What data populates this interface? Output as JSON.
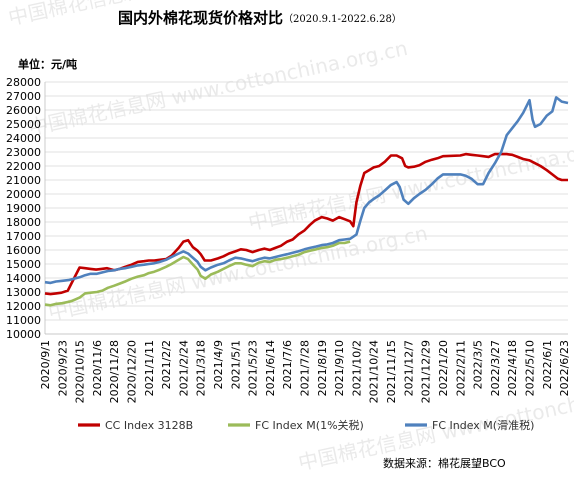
{
  "chart_data": {
    "type": "line",
    "title": "国内外棉花现货价格对比",
    "subtitle": "（2020.9.1-2022.6.28）",
    "ylabel": "单位：元/吨",
    "ylim": [
      10000,
      28000
    ],
    "yticks": [
      10000,
      11000,
      12000,
      13000,
      14000,
      15000,
      16000,
      17000,
      18000,
      19000,
      20000,
      21000,
      22000,
      23000,
      24000,
      25000,
      26000,
      27000,
      28000
    ],
    "xlim": [
      "2020-09-01",
      "2022-06-28"
    ],
    "xticks": [
      "2020/9/1",
      "2020/9/23",
      "2020/10/15",
      "2020/11/6",
      "2020/11/28",
      "2020/12/20",
      "2021/1/11",
      "2021/2/2",
      "2021/2/24",
      "2021/3/18",
      "2021/4/9",
      "2021/5/1",
      "2021/5/23",
      "2021/6/14",
      "2021/7/6",
      "2021/7/28",
      "2021/8/19",
      "2021/9/10",
      "2021/10/2",
      "2021/10/24",
      "2021/11/15",
      "2021/12/7",
      "2021/12/29",
      "2022/1/20",
      "2022/2/11",
      "2022/3/5",
      "2022/3/27",
      "2022/4/18",
      "2022/5/10",
      "2022/6/1",
      "2022/6/23"
    ],
    "grid": true,
    "legend_position": "bottom",
    "source": "数据来源：棉花展望BCO",
    "watermark": "中国棉花信息网 www.cottonchina.org.cn",
    "series": [
      {
        "name": "CC Index 3128B",
        "color": "#c00000",
        "points": [
          [
            "2020-09-01",
            12900
          ],
          [
            "2020-09-08",
            12850
          ],
          [
            "2020-09-15",
            12900
          ],
          [
            "2020-09-22",
            12950
          ],
          [
            "2020-09-30",
            13100
          ],
          [
            "2020-10-09",
            14100
          ],
          [
            "2020-10-15",
            14750
          ],
          [
            "2020-10-22",
            14700
          ],
          [
            "2020-10-29",
            14650
          ],
          [
            "2020-11-05",
            14600
          ],
          [
            "2020-11-12",
            14650
          ],
          [
            "2020-11-19",
            14700
          ],
          [
            "2020-11-28",
            14550
          ],
          [
            "2020-12-05",
            14650
          ],
          [
            "2020-12-12",
            14800
          ],
          [
            "2020-12-20",
            14950
          ],
          [
            "2020-12-28",
            15150
          ],
          [
            "2021-01-05",
            15200
          ],
          [
            "2021-01-11",
            15250
          ],
          [
            "2021-01-18",
            15250
          ],
          [
            "2021-01-25",
            15300
          ],
          [
            "2021-02-02",
            15350
          ],
          [
            "2021-02-09",
            15600
          ],
          [
            "2021-02-18",
            16150
          ],
          [
            "2021-02-24",
            16600
          ],
          [
            "2021-03-02",
            16700
          ],
          [
            "2021-03-08",
            16200
          ],
          [
            "2021-03-14",
            15950
          ],
          [
            "2021-03-18",
            15700
          ],
          [
            "2021-03-23",
            15250
          ],
          [
            "2021-03-31",
            15250
          ],
          [
            "2021-04-09",
            15400
          ],
          [
            "2021-04-16",
            15550
          ],
          [
            "2021-04-23",
            15750
          ],
          [
            "2021-05-01",
            15900
          ],
          [
            "2021-05-08",
            16050
          ],
          [
            "2021-05-15",
            16000
          ],
          [
            "2021-05-23",
            15850
          ],
          [
            "2021-05-31",
            16000
          ],
          [
            "2021-06-07",
            16100
          ],
          [
            "2021-06-14",
            16000
          ],
          [
            "2021-06-21",
            16150
          ],
          [
            "2021-06-28",
            16300
          ],
          [
            "2021-07-06",
            16600
          ],
          [
            "2021-07-13",
            16750
          ],
          [
            "2021-07-20",
            17100
          ],
          [
            "2021-07-28",
            17400
          ],
          [
            "2021-08-04",
            17800
          ],
          [
            "2021-08-10",
            18100
          ],
          [
            "2021-08-19",
            18350
          ],
          [
            "2021-08-26",
            18250
          ],
          [
            "2021-09-02",
            18100
          ],
          [
            "2021-09-10",
            18350
          ],
          [
            "2021-09-17",
            18200
          ],
          [
            "2021-09-24",
            18050
          ],
          [
            "2021-09-28",
            17700
          ],
          [
            "2021-10-02",
            19400
          ],
          [
            "2021-10-07",
            20600
          ],
          [
            "2021-10-12",
            21500
          ],
          [
            "2021-10-18",
            21700
          ],
          [
            "2021-10-24",
            21900
          ],
          [
            "2021-10-31",
            22000
          ],
          [
            "2021-11-07",
            22300
          ],
          [
            "2021-11-15",
            22750
          ],
          [
            "2021-11-22",
            22750
          ],
          [
            "2021-11-29",
            22550
          ],
          [
            "2021-12-03",
            22000
          ],
          [
            "2021-12-07",
            21900
          ],
          [
            "2021-12-14",
            21950
          ],
          [
            "2021-12-21",
            22050
          ],
          [
            "2021-12-29",
            22300
          ],
          [
            "2022-01-06",
            22450
          ],
          [
            "2022-01-13",
            22550
          ],
          [
            "2022-01-20",
            22700
          ],
          [
            "2022-02-11",
            22750
          ],
          [
            "2022-02-18",
            22850
          ],
          [
            "2022-02-25",
            22800
          ],
          [
            "2022-03-05",
            22750
          ],
          [
            "2022-03-12",
            22700
          ],
          [
            "2022-03-19",
            22650
          ],
          [
            "2022-03-27",
            22850
          ],
          [
            "2022-04-04",
            22850
          ],
          [
            "2022-04-11",
            22850
          ],
          [
            "2022-04-18",
            22800
          ],
          [
            "2022-04-25",
            22650
          ],
          [
            "2022-05-02",
            22500
          ],
          [
            "2022-05-10",
            22400
          ],
          [
            "2022-05-17",
            22200
          ],
          [
            "2022-05-24",
            22000
          ],
          [
            "2022-06-01",
            21700
          ],
          [
            "2022-06-08",
            21400
          ],
          [
            "2022-06-15",
            21100
          ],
          [
            "2022-06-20",
            21000
          ],
          [
            "2022-06-28",
            21000
          ]
        ]
      },
      {
        "name": "FC Index M(1%关税)",
        "color": "#9bbb59",
        "points": [
          [
            "2020-09-01",
            12100
          ],
          [
            "2020-09-08",
            12050
          ],
          [
            "2020-09-15",
            12150
          ],
          [
            "2020-09-23",
            12200
          ],
          [
            "2020-10-05",
            12350
          ],
          [
            "2020-10-15",
            12600
          ],
          [
            "2020-10-22",
            12900
          ],
          [
            "2020-10-29",
            12950
          ],
          [
            "2020-11-06",
            13000
          ],
          [
            "2020-11-13",
            13100
          ],
          [
            "2020-11-20",
            13300
          ],
          [
            "2020-11-28",
            13450
          ],
          [
            "2020-12-05",
            13600
          ],
          [
            "2020-12-12",
            13750
          ],
          [
            "2020-12-20",
            13950
          ],
          [
            "2020-12-28",
            14100
          ],
          [
            "2021-01-05",
            14200
          ],
          [
            "2021-01-11",
            14350
          ],
          [
            "2021-01-18",
            14450
          ],
          [
            "2021-01-25",
            14600
          ],
          [
            "2021-02-02",
            14800
          ],
          [
            "2021-02-09",
            15000
          ],
          [
            "2021-02-18",
            15300
          ],
          [
            "2021-02-24",
            15500
          ],
          [
            "2021-03-02",
            15350
          ],
          [
            "2021-03-09",
            14900
          ],
          [
            "2021-03-14",
            14600
          ],
          [
            "2021-03-18",
            14150
          ],
          [
            "2021-03-24",
            13950
          ],
          [
            "2021-03-31",
            14250
          ],
          [
            "2021-04-09",
            14450
          ],
          [
            "2021-04-16",
            14650
          ],
          [
            "2021-04-23",
            14850
          ],
          [
            "2021-05-01",
            15050
          ],
          [
            "2021-05-08",
            15050
          ],
          [
            "2021-05-15",
            14950
          ],
          [
            "2021-05-23",
            14850
          ],
          [
            "2021-05-31",
            15100
          ],
          [
            "2021-06-07",
            15200
          ],
          [
            "2021-06-14",
            15150
          ],
          [
            "2021-06-21",
            15300
          ],
          [
            "2021-06-28",
            15350
          ],
          [
            "2021-07-06",
            15450
          ],
          [
            "2021-07-13",
            15550
          ],
          [
            "2021-07-20",
            15650
          ],
          [
            "2021-07-28",
            15850
          ],
          [
            "2021-08-04",
            15950
          ],
          [
            "2021-08-12",
            16050
          ],
          [
            "2021-08-19",
            16150
          ],
          [
            "2021-08-26",
            16200
          ],
          [
            "2021-09-02",
            16300
          ],
          [
            "2021-09-10",
            16500
          ],
          [
            "2021-09-17",
            16500
          ],
          [
            "2021-09-24",
            16600
          ]
        ]
      },
      {
        "name": "FC Index M(滑准税)",
        "color": "#4f81bd",
        "points": [
          [
            "2020-09-01",
            13700
          ],
          [
            "2020-09-08",
            13650
          ],
          [
            "2020-09-15",
            13750
          ],
          [
            "2020-09-23",
            13800
          ],
          [
            "2020-10-01",
            13850
          ],
          [
            "2020-10-15",
            14050
          ],
          [
            "2020-10-22",
            14200
          ],
          [
            "2020-10-29",
            14300
          ],
          [
            "2020-11-06",
            14300
          ],
          [
            "2020-11-13",
            14400
          ],
          [
            "2020-11-20",
            14500
          ],
          [
            "2020-11-28",
            14550
          ],
          [
            "2020-12-05",
            14650
          ],
          [
            "2020-12-12",
            14700
          ],
          [
            "2020-12-20",
            14800
          ],
          [
            "2020-12-28",
            14900
          ],
          [
            "2021-01-05",
            14950
          ],
          [
            "2021-01-11",
            15000
          ],
          [
            "2021-01-18",
            15050
          ],
          [
            "2021-01-25",
            15150
          ],
          [
            "2021-02-02",
            15300
          ],
          [
            "2021-02-09",
            15500
          ],
          [
            "2021-02-18",
            15750
          ],
          [
            "2021-02-24",
            15900
          ],
          [
            "2021-03-02",
            15750
          ],
          [
            "2021-03-09",
            15400
          ],
          [
            "2021-03-14",
            15150
          ],
          [
            "2021-03-18",
            14800
          ],
          [
            "2021-03-24",
            14550
          ],
          [
            "2021-03-31",
            14750
          ],
          [
            "2021-04-09",
            14950
          ],
          [
            "2021-04-16",
            15050
          ],
          [
            "2021-04-23",
            15250
          ],
          [
            "2021-05-01",
            15450
          ],
          [
            "2021-05-08",
            15400
          ],
          [
            "2021-05-15",
            15300
          ],
          [
            "2021-05-23",
            15200
          ],
          [
            "2021-05-31",
            15350
          ],
          [
            "2021-06-07",
            15450
          ],
          [
            "2021-06-14",
            15400
          ],
          [
            "2021-06-21",
            15500
          ],
          [
            "2021-06-28",
            15600
          ],
          [
            "2021-07-06",
            15700
          ],
          [
            "2021-07-13",
            15800
          ],
          [
            "2021-07-20",
            15900
          ],
          [
            "2021-07-28",
            16050
          ],
          [
            "2021-08-04",
            16150
          ],
          [
            "2021-08-12",
            16250
          ],
          [
            "2021-08-19",
            16350
          ],
          [
            "2021-08-26",
            16400
          ],
          [
            "2021-09-02",
            16500
          ],
          [
            "2021-09-10",
            16700
          ],
          [
            "2021-09-17",
            16750
          ],
          [
            "2021-09-24",
            16800
          ],
          [
            "2021-10-02",
            17100
          ],
          [
            "2021-10-07",
            18100
          ],
          [
            "2021-10-12",
            19000
          ],
          [
            "2021-10-18",
            19400
          ],
          [
            "2021-10-24",
            19650
          ],
          [
            "2021-10-31",
            19900
          ],
          [
            "2021-11-07",
            20250
          ],
          [
            "2021-11-15",
            20650
          ],
          [
            "2021-11-22",
            20850
          ],
          [
            "2021-11-26",
            20500
          ],
          [
            "2021-12-01",
            19600
          ],
          [
            "2021-12-07",
            19300
          ],
          [
            "2021-12-14",
            19700
          ],
          [
            "2021-12-21",
            20000
          ],
          [
            "2021-12-29",
            20300
          ],
          [
            "2022-01-06",
            20700
          ],
          [
            "2022-01-13",
            21100
          ],
          [
            "2022-01-20",
            21400
          ],
          [
            "2022-02-11",
            21400
          ],
          [
            "2022-02-18",
            21300
          ],
          [
            "2022-02-25",
            21100
          ],
          [
            "2022-03-05",
            20700
          ],
          [
            "2022-03-12",
            20700
          ],
          [
            "2022-03-19",
            21500
          ],
          [
            "2022-03-27",
            22200
          ],
          [
            "2022-04-04",
            23000
          ],
          [
            "2022-04-11",
            24200
          ],
          [
            "2022-04-18",
            24700
          ],
          [
            "2022-04-25",
            25200
          ],
          [
            "2022-05-02",
            25800
          ],
          [
            "2022-05-10",
            26700
          ],
          [
            "2022-05-14",
            25300
          ],
          [
            "2022-05-17",
            24800
          ],
          [
            "2022-05-24",
            25000
          ],
          [
            "2022-06-01",
            25600
          ],
          [
            "2022-06-08",
            25900
          ],
          [
            "2022-06-13",
            26900
          ],
          [
            "2022-06-20",
            26600
          ],
          [
            "2022-06-28",
            26500
          ]
        ]
      }
    ]
  }
}
